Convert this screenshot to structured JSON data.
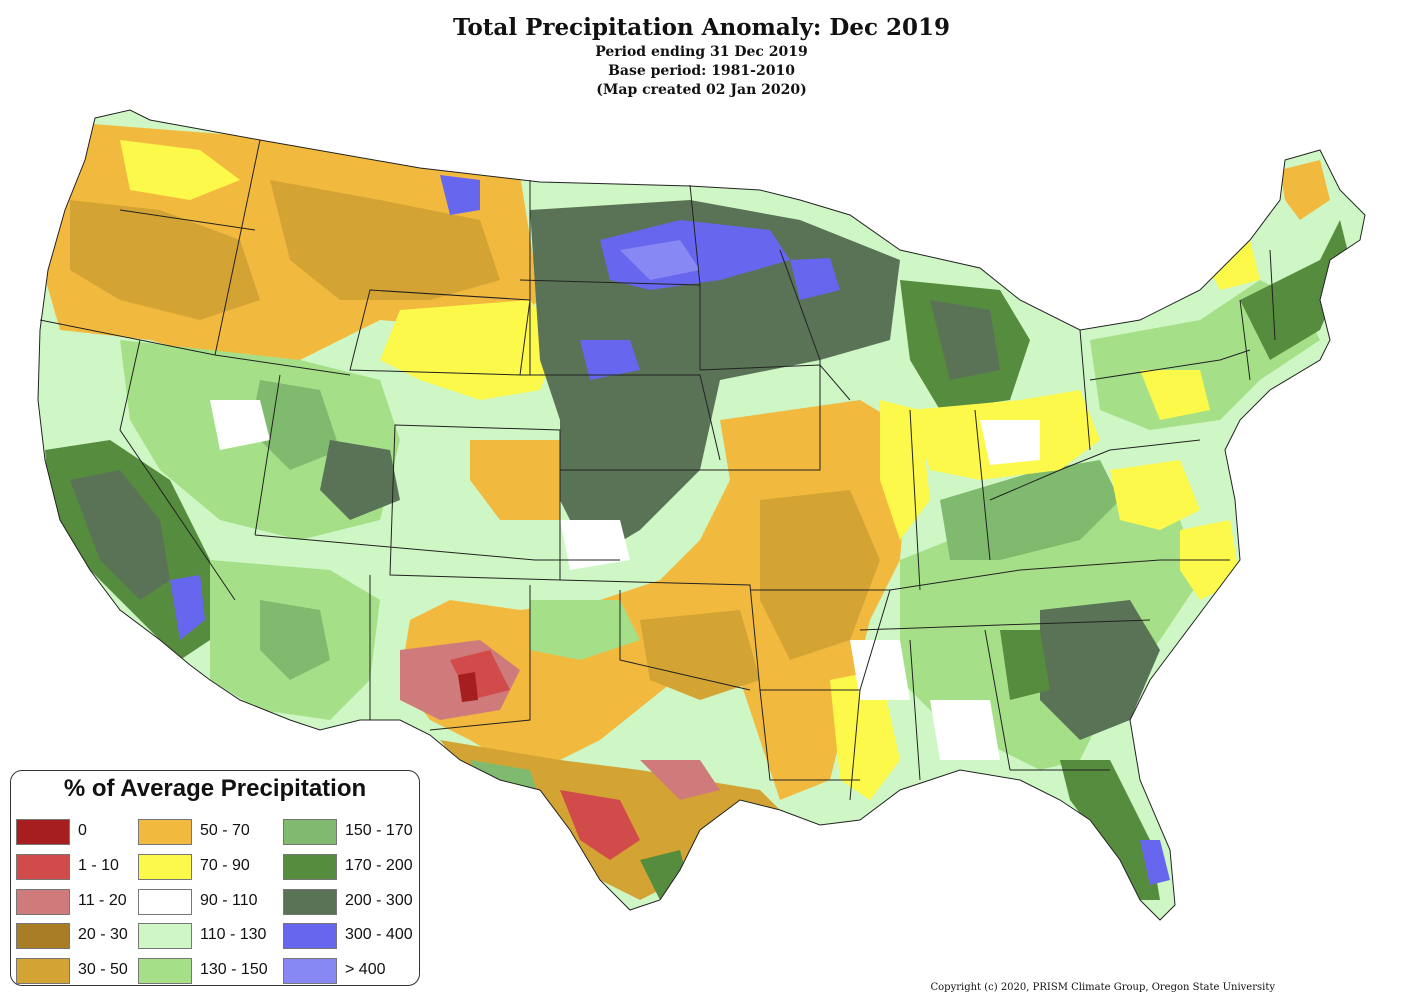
{
  "title": "Total Precipitation Anomaly: Dec 2019",
  "subtitle_lines": [
    "Period ending 31 Dec 2019",
    "Base period: 1981-2010",
    "(Map created 02 Jan 2020)"
  ],
  "legend": {
    "title": "% of Average Precipitation",
    "items": [
      {
        "label": "0",
        "color": "#a61e1e"
      },
      {
        "label": "1 - 10",
        "color": "#d24b4b"
      },
      {
        "label": "11 - 20",
        "color": "#cf7b7b"
      },
      {
        "label": "20 - 30",
        "color": "#a87d26"
      },
      {
        "label": "30 - 50",
        "color": "#d3a334"
      },
      {
        "label": "50 - 70",
        "color": "#f2b93f"
      },
      {
        "label": "70 - 90",
        "color": "#fdf94a"
      },
      {
        "label": "90 - 110",
        "color": "#ffffff"
      },
      {
        "label": "110 - 130",
        "color": "#cff7c6"
      },
      {
        "label": "130 - 150",
        "color": "#a5e088"
      },
      {
        "label": "150 - 170",
        "color": "#7fba6e"
      },
      {
        "label": "170 - 200",
        "color": "#568c3d"
      },
      {
        "label": "200 - 300",
        "color": "#5a7357"
      },
      {
        "label": "300 - 400",
        "color": "#6666ee"
      },
      {
        "label": "> 400",
        "color": "#8888f4"
      }
    ]
  },
  "copyright": "Copyright (c) 2020, PRISM Climate Group, Oregon State University"
}
